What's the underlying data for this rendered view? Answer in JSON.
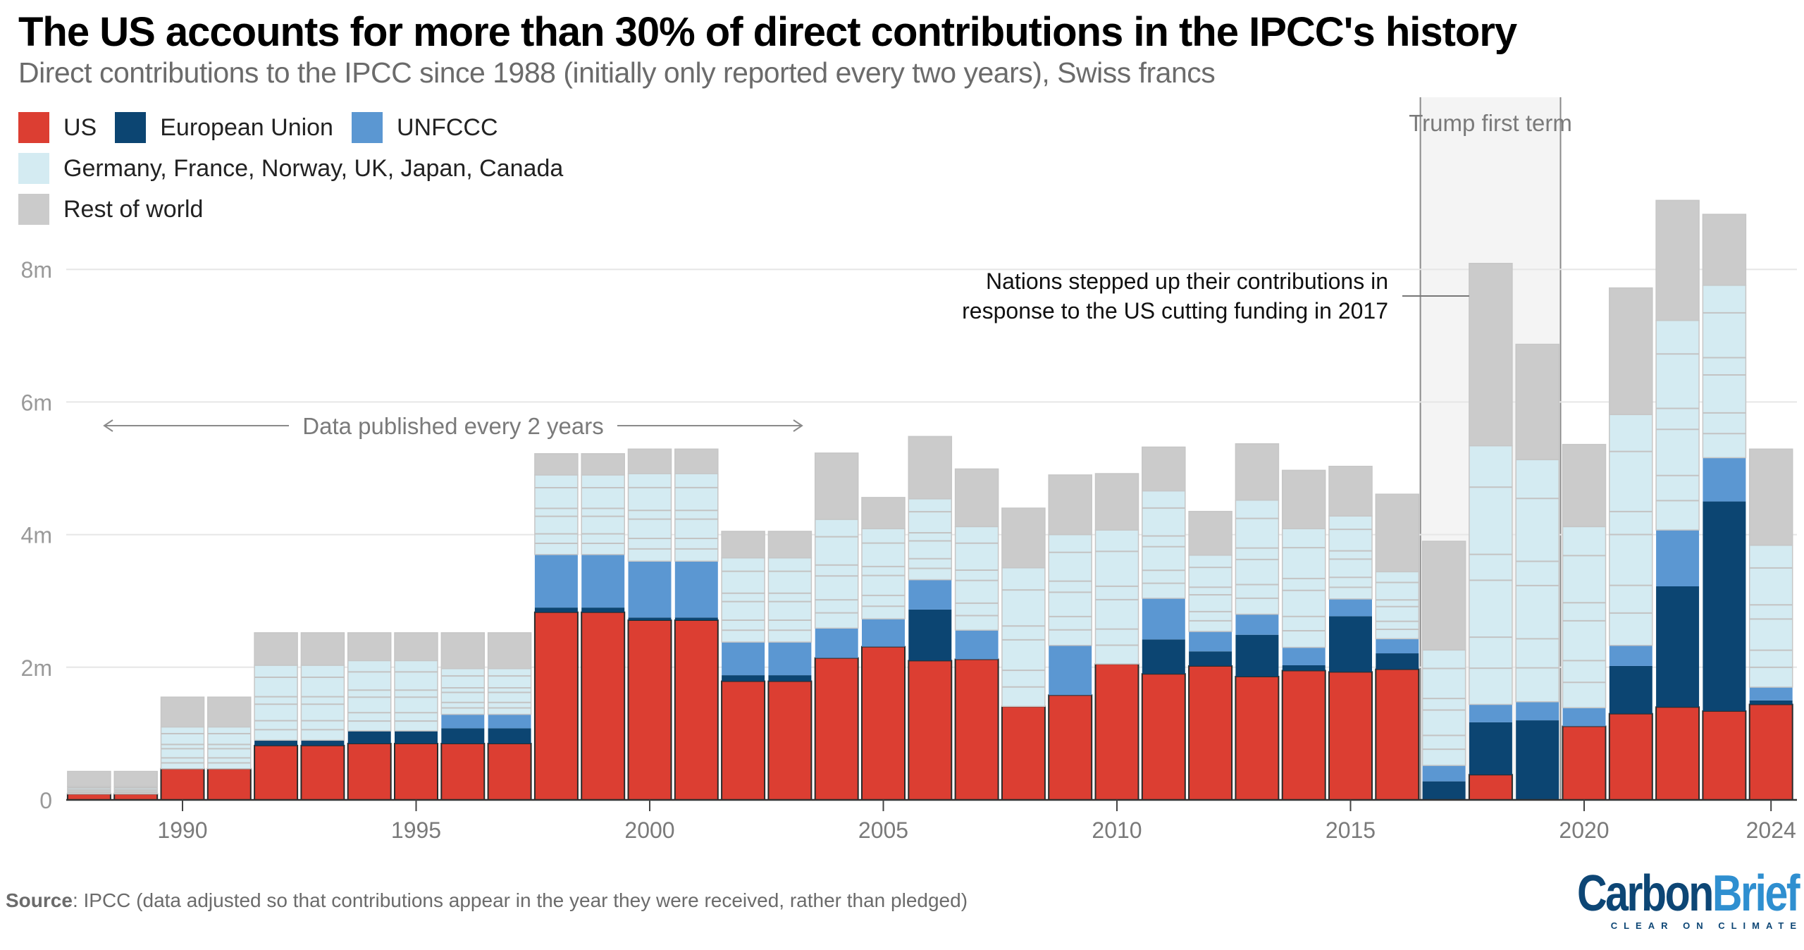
{
  "header": {
    "title": "The US accounts for more than 30% of direct contributions in the IPCC's history",
    "subtitle": "Direct contributions to the IPCC since 1988 (initially only reported every two years), Swiss francs"
  },
  "legend": [
    {
      "key": "us",
      "label": "US",
      "color": "#dc3e32"
    },
    {
      "key": "eu",
      "label": "European Union",
      "color": "#0c4572"
    },
    {
      "key": "unfccc",
      "label": "UNFCCC",
      "color": "#5b97d2"
    },
    {
      "key": "countries",
      "label": "Germany, France, Norway, UK, Japan, Canada",
      "color": "#d4ebf2"
    },
    {
      "key": "row",
      "label": "Rest of world",
      "color": "#cbcbcb"
    }
  ],
  "annotations": {
    "trump_band": {
      "label": "Trump first term",
      "from_year": 2017,
      "to_year": 2020
    },
    "biennial_note": {
      "label": "Data published every 2 years",
      "from_year": 1988,
      "to_year": 2003
    },
    "callout_line1": "Nations stepped up their contributions in",
    "callout_line2": "response to the US cutting funding in 2017",
    "callout_year": 2018
  },
  "footer": {
    "source_bold": "Source",
    "source_text": ": IPCC (data adjusted so that contributions appear in the year they were received, rather than pledged)",
    "logo_carbon": "Carbon",
    "logo_brief": "Brief",
    "logo_tagline": "CLEAR ON CLIMATE"
  },
  "chart_data": {
    "type": "bar",
    "stacked": true,
    "title": "The US accounts for more than 30% of direct contributions in the IPCC's history",
    "subtitle": "Direct contributions to the IPCC since 1988 (initially only reported every two years), Swiss francs",
    "xlabel": "",
    "ylabel": "Swiss francs",
    "ylim": [
      0,
      9.2
    ],
    "y_unit": "million CHF",
    "yticks": [
      0,
      2,
      4,
      6,
      8
    ],
    "ytick_labels": [
      "0",
      "2m",
      "4m",
      "6m",
      "8m"
    ],
    "xticks": [
      1990,
      1995,
      2000,
      2005,
      2010,
      2015,
      2020,
      2024
    ],
    "grid": true,
    "legend_position": "top-left",
    "categories": [
      1988,
      1989,
      1990,
      1991,
      1992,
      1993,
      1994,
      1995,
      1996,
      1997,
      1998,
      1999,
      2000,
      2001,
      2002,
      2003,
      2004,
      2005,
      2006,
      2007,
      2008,
      2009,
      2010,
      2011,
      2012,
      2013,
      2014,
      2015,
      2016,
      2017,
      2018,
      2019,
      2020,
      2021,
      2022,
      2023,
      2024
    ],
    "series": [
      {
        "name": "US",
        "key": "us",
        "values": [
          0.09,
          0.09,
          0.47,
          0.47,
          0.82,
          0.82,
          0.85,
          0.85,
          0.85,
          0.85,
          2.83,
          2.83,
          2.71,
          2.71,
          1.79,
          1.79,
          2.14,
          2.31,
          2.1,
          2.12,
          1.41,
          1.58,
          2.05,
          1.9,
          2.02,
          1.86,
          1.95,
          1.93,
          1.97,
          0.0,
          0.38,
          0.0,
          1.11,
          1.3,
          1.4,
          1.34,
          1.44
        ]
      },
      {
        "name": "European Union",
        "key": "eu",
        "values": [
          0,
          0,
          0,
          0,
          0.08,
          0.08,
          0.19,
          0.19,
          0.23,
          0.23,
          0.07,
          0.07,
          0.04,
          0.04,
          0.09,
          0.09,
          0,
          0,
          0.77,
          0,
          0,
          0,
          0,
          0.52,
          0.22,
          0.63,
          0.08,
          0.84,
          0.24,
          0.28,
          0.79,
          1.2,
          0,
          0.72,
          1.82,
          3.16,
          0.06
        ]
      },
      {
        "name": "UNFCCC",
        "key": "unfccc",
        "values": [
          0,
          0,
          0,
          0,
          0,
          0,
          0,
          0,
          0.21,
          0.21,
          0.8,
          0.8,
          0.85,
          0.85,
          0.5,
          0.5,
          0.45,
          0.42,
          0.45,
          0.44,
          0,
          0.75,
          0,
          0.62,
          0.3,
          0.31,
          0.27,
          0.26,
          0.22,
          0.24,
          0.27,
          0.28,
          0.28,
          0.31,
          0.85,
          0.66,
          0.2
        ]
      },
      {
        "name": "Germany, France, Norway, UK, Japan, Canada",
        "key": "countries",
        "values": [
          0.11,
          0.11,
          0.63,
          0.63,
          1.13,
          1.13,
          1.06,
          1.06,
          0.69,
          0.69,
          1.2,
          1.2,
          1.32,
          1.32,
          1.27,
          1.27,
          1.64,
          1.36,
          1.22,
          1.56,
          2.09,
          1.67,
          2.02,
          1.62,
          1.15,
          1.72,
          1.79,
          1.25,
          1.01,
          1.74,
          3.9,
          3.65,
          2.73,
          3.48,
          3.16,
          2.6,
          2.14
        ]
      },
      {
        "name": "Rest of world",
        "key": "row",
        "values": [
          0.23,
          0.23,
          0.45,
          0.45,
          0.49,
          0.49,
          0.42,
          0.42,
          0.54,
          0.54,
          0.32,
          0.32,
          0.37,
          0.37,
          0.4,
          0.4,
          1.0,
          0.47,
          0.94,
          0.87,
          0.9,
          0.9,
          0.85,
          0.66,
          0.66,
          0.85,
          0.88,
          0.75,
          1.17,
          1.64,
          2.75,
          1.74,
          1.24,
          1.91,
          1.81,
          1.07,
          1.45
        ]
      }
    ]
  }
}
